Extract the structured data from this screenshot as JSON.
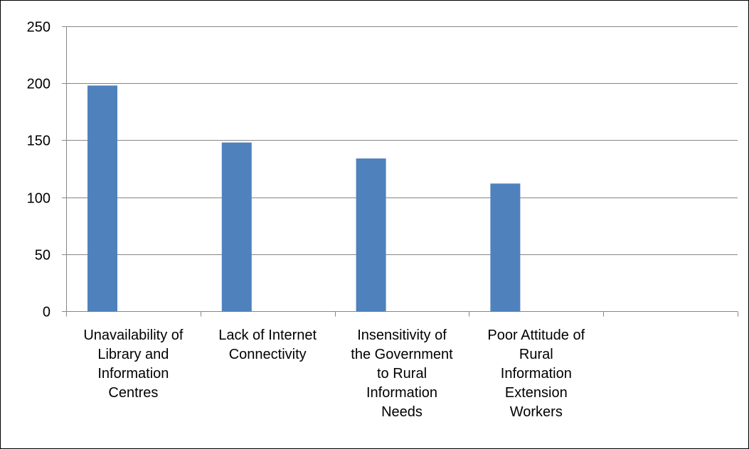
{
  "chart_data": {
    "type": "bar",
    "title": "",
    "xlabel": "",
    "ylabel": "",
    "categories": [
      [
        "Unavailability of",
        "Library and",
        "Information",
        "Centres"
      ],
      [
        "Lack of Internet",
        "Connectivity"
      ],
      [
        "Insensitivity of",
        "the Government",
        "to Rural",
        "Information",
        "Needs"
      ],
      [
        "Poor Attitude of",
        "Rural",
        "Information",
        "Extension",
        "Workers"
      ],
      []
    ],
    "values": [
      198,
      148,
      134,
      112,
      null
    ],
    "ylim": [
      0,
      250
    ],
    "yticks": [
      0,
      50,
      100,
      150,
      200,
      250
    ],
    "grid": true,
    "legend": "none",
    "bar_color": "#4F81BD",
    "gridline_color": "#868686"
  }
}
